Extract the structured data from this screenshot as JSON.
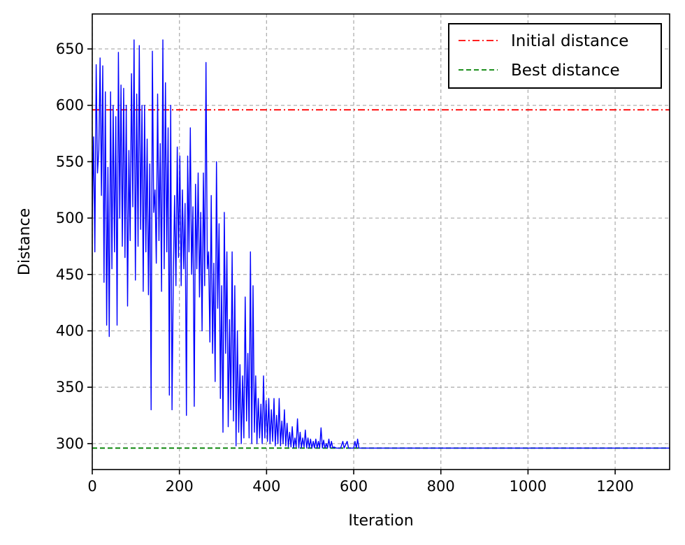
{
  "chart_data": {
    "type": "line",
    "title": "",
    "xlabel": "Iteration",
    "ylabel": "Distance",
    "xlim": [
      0,
      1325
    ],
    "ylim": [
      277,
      681
    ],
    "xticks": [
      0,
      200,
      400,
      600,
      800,
      1000,
      1200
    ],
    "yticks": [
      300,
      350,
      400,
      450,
      500,
      550,
      600,
      650
    ],
    "grid": true,
    "legend_position": "top-right",
    "series": [
      {
        "name": "",
        "color": "#0000ff",
        "style": "solid",
        "points": [
          [
            0,
            500
          ],
          [
            3,
            572
          ],
          [
            6,
            470
          ],
          [
            9,
            636
          ],
          [
            12,
            540
          ],
          [
            15,
            560
          ],
          [
            18,
            642
          ],
          [
            21,
            520
          ],
          [
            24,
            635
          ],
          [
            27,
            443
          ],
          [
            30,
            612
          ],
          [
            33,
            405
          ],
          [
            36,
            545
          ],
          [
            39,
            395
          ],
          [
            42,
            612
          ],
          [
            45,
            455
          ],
          [
            48,
            600
          ],
          [
            51,
            470
          ],
          [
            54,
            590
          ],
          [
            57,
            405
          ],
          [
            60,
            647
          ],
          [
            63,
            500
          ],
          [
            66,
            618
          ],
          [
            69,
            475
          ],
          [
            72,
            615
          ],
          [
            75,
            465
          ],
          [
            78,
            600
          ],
          [
            81,
            422
          ],
          [
            84,
            560
          ],
          [
            87,
            480
          ],
          [
            90,
            628
          ],
          [
            93,
            510
          ],
          [
            96,
            658
          ],
          [
            99,
            445
          ],
          [
            102,
            610
          ],
          [
            105,
            475
          ],
          [
            108,
            653
          ],
          [
            111,
            490
          ],
          [
            114,
            600
          ],
          [
            117,
            435
          ],
          [
            120,
            600
          ],
          [
            123,
            470
          ],
          [
            126,
            570
          ],
          [
            129,
            432
          ],
          [
            132,
            548
          ],
          [
            135,
            330
          ],
          [
            138,
            648
          ],
          [
            141,
            505
          ],
          [
            144,
            525
          ],
          [
            147,
            460
          ],
          [
            150,
            610
          ],
          [
            153,
            480
          ],
          [
            156,
            566
          ],
          [
            159,
            435
          ],
          [
            162,
            658
          ],
          [
            165,
            455
          ],
          [
            168,
            620
          ],
          [
            171,
            470
          ],
          [
            174,
            580
          ],
          [
            177,
            343
          ],
          [
            180,
            600
          ],
          [
            183,
            330
          ],
          [
            186,
            450
          ],
          [
            189,
            520
          ],
          [
            192,
            440
          ],
          [
            195,
            563
          ],
          [
            198,
            465
          ],
          [
            201,
            555
          ],
          [
            204,
            440
          ],
          [
            207,
            525
          ],
          [
            210,
            455
          ],
          [
            213,
            513
          ],
          [
            216,
            325
          ],
          [
            219,
            555
          ],
          [
            222,
            470
          ],
          [
            225,
            580
          ],
          [
            228,
            450
          ],
          [
            231,
            510
          ],
          [
            234,
            333
          ],
          [
            237,
            530
          ],
          [
            240,
            455
          ],
          [
            243,
            540
          ],
          [
            246,
            430
          ],
          [
            249,
            505
          ],
          [
            252,
            400
          ],
          [
            255,
            540
          ],
          [
            258,
            440
          ],
          [
            261,
            638
          ],
          [
            264,
            455
          ],
          [
            267,
            470
          ],
          [
            270,
            390
          ],
          [
            273,
            520
          ],
          [
            276,
            380
          ],
          [
            279,
            460
          ],
          [
            282,
            355
          ],
          [
            285,
            550
          ],
          [
            288,
            420
          ],
          [
            291,
            495
          ],
          [
            294,
            340
          ],
          [
            297,
            440
          ],
          [
            300,
            310
          ],
          [
            303,
            505
          ],
          [
            306,
            380
          ],
          [
            309,
            470
          ],
          [
            312,
            315
          ],
          [
            315,
            410
          ],
          [
            318,
            330
          ],
          [
            321,
            470
          ],
          [
            324,
            320
          ],
          [
            327,
            440
          ],
          [
            330,
            298
          ],
          [
            333,
            400
          ],
          [
            336,
            310
          ],
          [
            339,
            370
          ],
          [
            342,
            300
          ],
          [
            345,
            360
          ],
          [
            348,
            305
          ],
          [
            351,
            430
          ],
          [
            354,
            320
          ],
          [
            357,
            380
          ],
          [
            360,
            305
          ],
          [
            363,
            470
          ],
          [
            366,
            300
          ],
          [
            369,
            440
          ],
          [
            372,
            310
          ],
          [
            375,
            360
          ],
          [
            378,
            300
          ],
          [
            381,
            340
          ],
          [
            384,
            305
          ],
          [
            387,
            335
          ],
          [
            390,
            300
          ],
          [
            393,
            360
          ],
          [
            396,
            305
          ],
          [
            399,
            338
          ],
          [
            402,
            302
          ],
          [
            405,
            340
          ],
          [
            408,
            300
          ],
          [
            411,
            330
          ],
          [
            414,
            302
          ],
          [
            417,
            340
          ],
          [
            420,
            298
          ],
          [
            423,
            325
          ],
          [
            426,
            300
          ],
          [
            429,
            340
          ],
          [
            432,
            298
          ],
          [
            435,
            320
          ],
          [
            438,
            300
          ],
          [
            441,
            330
          ],
          [
            444,
            298
          ],
          [
            447,
            318
          ],
          [
            450,
            297
          ],
          [
            453,
            310
          ],
          [
            456,
            297
          ],
          [
            459,
            315
          ],
          [
            462,
            296
          ],
          [
            465,
            305
          ],
          [
            468,
            297
          ],
          [
            471,
            322
          ],
          [
            474,
            296
          ],
          [
            477,
            310
          ],
          [
            480,
            296
          ],
          [
            483,
            305
          ],
          [
            486,
            297
          ],
          [
            489,
            312
          ],
          [
            492,
            296
          ],
          [
            495,
            305
          ],
          [
            498,
            296
          ],
          [
            501,
            304
          ],
          [
            504,
            296
          ],
          [
            507,
            302
          ],
          [
            510,
            296
          ],
          [
            513,
            304
          ],
          [
            516,
            296
          ],
          [
            519,
            302
          ],
          [
            522,
            296
          ],
          [
            525,
            314
          ],
          [
            528,
            296
          ],
          [
            531,
            303
          ],
          [
            534,
            296
          ],
          [
            537,
            300
          ],
          [
            540,
            296
          ],
          [
            543,
            304
          ],
          [
            546,
            296
          ],
          [
            549,
            302
          ],
          [
            552,
            296
          ],
          [
            555,
            297
          ],
          [
            560,
            296
          ],
          [
            570,
            296
          ],
          [
            575,
            302
          ],
          [
            578,
            296
          ],
          [
            585,
            302
          ],
          [
            588,
            296
          ],
          [
            600,
            296
          ],
          [
            603,
            302
          ],
          [
            606,
            296
          ],
          [
            609,
            304
          ],
          [
            612,
            296
          ],
          [
            620,
            296
          ],
          [
            700,
            296
          ],
          [
            800,
            296
          ],
          [
            900,
            296
          ],
          [
            1000,
            296
          ],
          [
            1100,
            296
          ],
          [
            1200,
            296
          ],
          [
            1325,
            296
          ]
        ]
      },
      {
        "name": "Initial distance",
        "color": "#ff0000",
        "style": "dashdot",
        "y": 596
      },
      {
        "name": "Best distance",
        "color": "#008000",
        "style": "dashed",
        "y": 296
      }
    ]
  }
}
